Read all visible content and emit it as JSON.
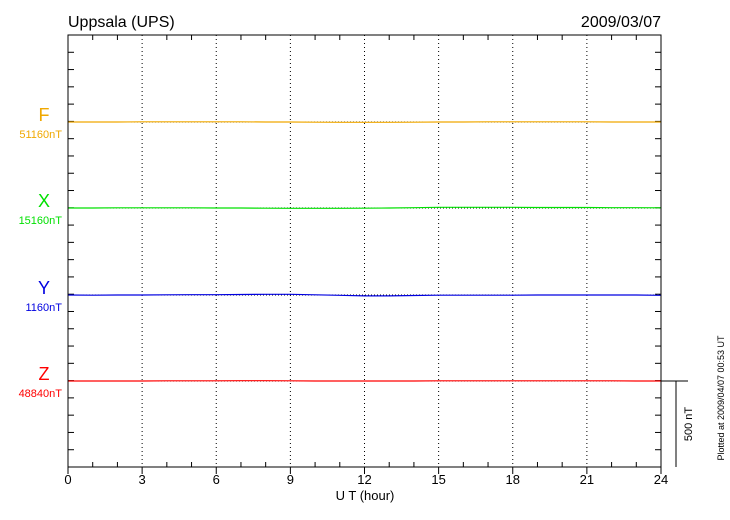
{
  "chart_data": {
    "type": "line",
    "title": "Uppsala (UPS)",
    "date": "2009/03/07",
    "xlabel": "U T (hour)",
    "xlim": [
      0,
      24
    ],
    "x_ticks": [
      0,
      3,
      6,
      9,
      12,
      15,
      18,
      21,
      24
    ],
    "grid": "vertical dotted at 3-hour intervals",
    "scale_bar_label": "500 nT",
    "footer": "Plotted at 2009/04/07 00:53 UT",
    "x": [
      0,
      1,
      2,
      3,
      4,
      5,
      6,
      7,
      8,
      9,
      10,
      11,
      12,
      13,
      14,
      15,
      16,
      17,
      18,
      19,
      20,
      21,
      22,
      23,
      24
    ],
    "series": [
      {
        "name": "F",
        "baseline_label": "51160nT",
        "baseline": 51160,
        "color": "#f0a800",
        "values": [
          51160,
          51160,
          51160,
          51161,
          51161,
          51161,
          51161,
          51161,
          51160,
          51160,
          51159,
          51158,
          51158,
          51158,
          51159,
          51160,
          51160,
          51161,
          51161,
          51161,
          51161,
          51161,
          51160,
          51160,
          51160
        ]
      },
      {
        "name": "X",
        "baseline_label": "15160nT",
        "baseline": 15160,
        "color": "#00e000",
        "values": [
          15160,
          15160,
          15161,
          15161,
          15161,
          15161,
          15160,
          15160,
          15159,
          15158,
          15158,
          15158,
          15159,
          15160,
          15162,
          15164,
          15164,
          15164,
          15164,
          15163,
          15163,
          15163,
          15162,
          15162,
          15161
        ]
      },
      {
        "name": "Y",
        "baseline_label": "1160nT",
        "baseline": 1160,
        "color": "#0000e0",
        "values": [
          1160,
          1159,
          1160,
          1160,
          1161,
          1162,
          1162,
          1163,
          1164,
          1164,
          1161,
          1158,
          1155,
          1155,
          1157,
          1159,
          1159,
          1159,
          1159,
          1160,
          1160,
          1160,
          1160,
          1160,
          1158
        ]
      },
      {
        "name": "Z",
        "baseline_label": "48840nT",
        "baseline": 48840,
        "color": "#ff0000",
        "values": [
          48840,
          48840,
          48840,
          48840,
          48841,
          48841,
          48841,
          48842,
          48842,
          48841,
          48840,
          48840,
          48840,
          48840,
          48840,
          48841,
          48841,
          48841,
          48841,
          48841,
          48841,
          48841,
          48841,
          48840,
          48840
        ]
      }
    ]
  }
}
